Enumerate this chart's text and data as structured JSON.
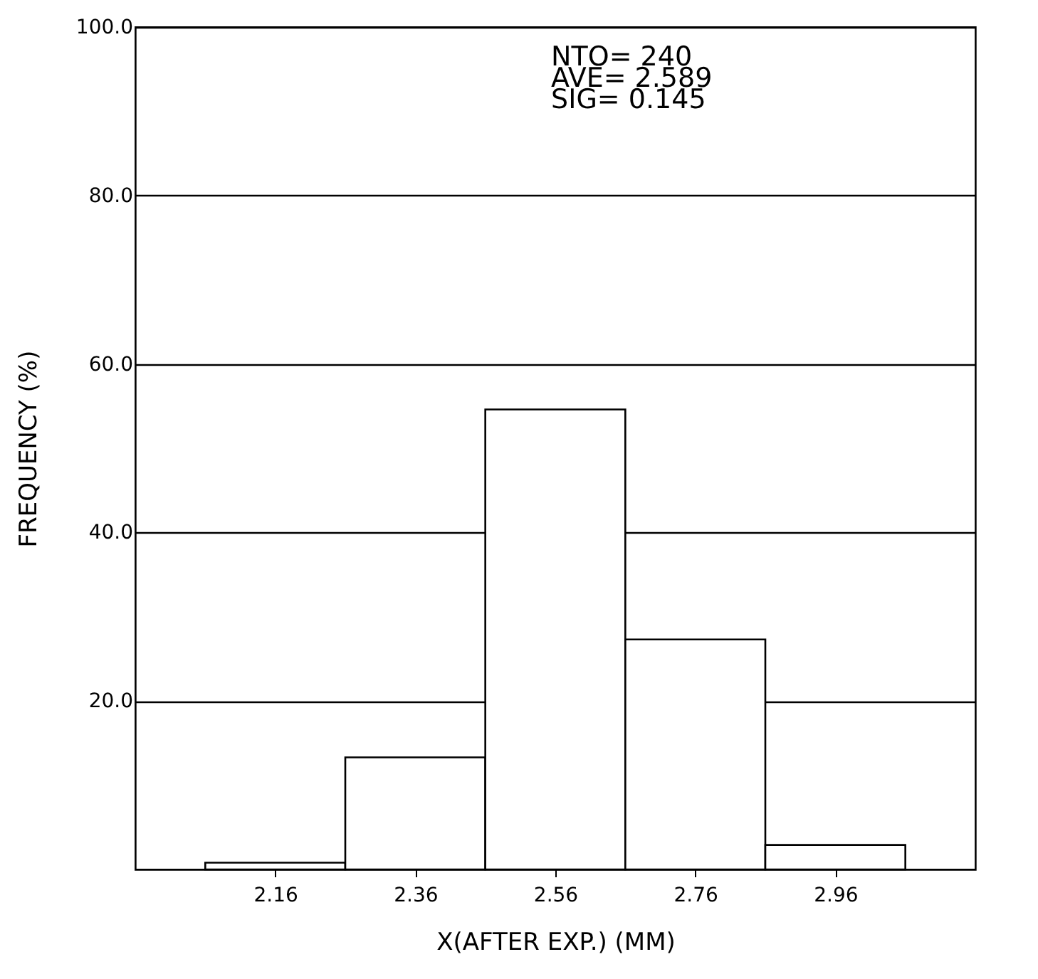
{
  "chart_data": {
    "type": "histogram",
    "xlabel": "X(AFTER EXP.) (MM)",
    "ylabel": "FREQUENCY (%)",
    "bins": [
      2.06,
      2.26,
      2.46,
      2.66,
      2.86,
      3.06
    ],
    "values": [
      0.8,
      13.3,
      54.6,
      27.3,
      2.9
    ],
    "color": "#ffffff",
    "xlim": [
      1.96,
      3.16
    ],
    "xticks": [
      2.16,
      2.36,
      2.56,
      2.76,
      2.96
    ],
    "ylim": [
      0,
      100
    ],
    "yticks": [
      {
        "value": 20,
        "label": "20.0"
      },
      {
        "value": 40,
        "label": "40.0"
      },
      {
        "value": 60,
        "label": "60.0"
      },
      {
        "value": 80,
        "label": "80.0"
      },
      {
        "value": 100,
        "label": "100.0"
      }
    ],
    "grid": "y",
    "annotations": [
      "NTO= 240",
      "AVE= 2.589",
      "SIG= 0.145"
    ]
  }
}
